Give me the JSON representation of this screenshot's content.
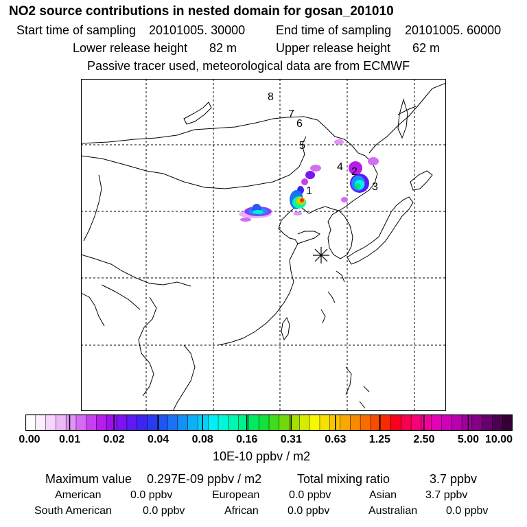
{
  "title": "NO2 source contributions in nested domain for gosan_201010",
  "sampling": {
    "start_label": "Start time of sampling",
    "start_value": "20101005. 30000",
    "end_label": "End time of sampling",
    "end_value": "20101005. 60000"
  },
  "release": {
    "lower_label": "Lower release height",
    "lower_value": "82 m",
    "upper_label": "Upper release height",
    "upper_value": "62 m"
  },
  "note": "Passive tracer used, meteorological data are from ECMWF",
  "map": {
    "markers": [
      "1",
      "2",
      "3",
      "4",
      "5",
      "6",
      "7",
      "8"
    ],
    "receptor_symbol": "asterisk"
  },
  "colorbar": {
    "labels": [
      "0.00",
      "0.01",
      "0.02",
      "0.04",
      "0.08",
      "0.16",
      "0.31",
      "0.63",
      "1.25",
      "2.50",
      "5.00",
      "10.00"
    ],
    "colors": [
      "#ffffff",
      "#fbeefd",
      "#f4d5fb",
      "#ecb8f8",
      "#e293f6",
      "#d46cf3",
      "#c640f0",
      "#b81ced",
      "#9c10f0",
      "#7a14f2",
      "#5b1bf2",
      "#3d24ef",
      "#2a3af0",
      "#1f55f2",
      "#1a72f4",
      "#1391f5",
      "#0cb0f6",
      "#05d0f7",
      "#00f0f8",
      "#00f7d8",
      "#00f7b0",
      "#00f288",
      "#00ea60",
      "#12e23c",
      "#40dc1c",
      "#72d80c",
      "#a4e000",
      "#d4ec00",
      "#f8f800",
      "#f8e000",
      "#f8c400",
      "#f8a800",
      "#f88a00",
      "#f86c00",
      "#f84c00",
      "#f82a00",
      "#f80020",
      "#f80050",
      "#f80078",
      "#f400a0",
      "#e400b4",
      "#d000b8",
      "#b800b0",
      "#a0009c",
      "#840084",
      "#68006c",
      "#4c0050",
      "#340034"
    ],
    "unit": "10E-10 ppbv / m2"
  },
  "summary": {
    "max_label": "Maximum value",
    "max_value": "0.297E-09 ppbv / m2",
    "total_label": "Total mixing ratio",
    "total_value": "3.7 ppbv",
    "regions": [
      {
        "name": "American",
        "value": "0.0 ppbv"
      },
      {
        "name": "European",
        "value": "0.0 ppbv"
      },
      {
        "name": "Asian",
        "value": "3.7 ppbv"
      },
      {
        "name": "South American",
        "value": "0.0 ppbv"
      },
      {
        "name": "African",
        "value": "0.0 ppbv"
      },
      {
        "name": "Australian",
        "value": "0.0 ppbv"
      }
    ]
  }
}
